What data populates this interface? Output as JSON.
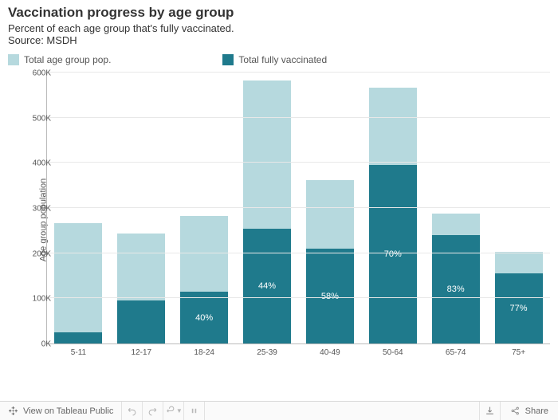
{
  "header": {
    "title": "Vaccination progress by age group",
    "subtitle": "Percent of each age group that's fully vaccinated.",
    "source": "Source: MSDH"
  },
  "legend": {
    "items": [
      {
        "label": "Total age group pop.",
        "color": "#b6d9de"
      },
      {
        "label": "Total fully vaccinated",
        "color": "#1f7a8c"
      }
    ]
  },
  "chart": {
    "type": "bar-stacked",
    "y_axis_label": "Age group population",
    "ylim": [
      0,
      600000
    ],
    "ytick_step": 100000,
    "y_tick_labels": [
      "0K",
      "100K",
      "200K",
      "300K",
      "400K",
      "500K",
      "600K"
    ],
    "background_color": "#ffffff",
    "grid_color": "#e8e8e8",
    "axis_color": "#bbbbbb",
    "label_color": "#555555",
    "label_fontsize": 10,
    "bar_width_ratio": 0.76,
    "series_colors": {
      "total_pop": "#b6d9de",
      "vaccinated": "#1f7a8c"
    },
    "value_label_color": "#ffffff",
    "categories": [
      {
        "label": "5-11",
        "total_pop": 268000,
        "vaccinated": 25000,
        "pct_label": ""
      },
      {
        "label": "12-17",
        "total_pop": 244000,
        "vaccinated": 95000,
        "pct_label": ""
      },
      {
        "label": "18-24",
        "total_pop": 284000,
        "vaccinated": 115000,
        "pct_label": "40%"
      },
      {
        "label": "25-39",
        "total_pop": 585000,
        "vaccinated": 255000,
        "pct_label": "44%"
      },
      {
        "label": "40-49",
        "total_pop": 363000,
        "vaccinated": 210000,
        "pct_label": "58%"
      },
      {
        "label": "50-64",
        "total_pop": 568000,
        "vaccinated": 396000,
        "pct_label": "70%"
      },
      {
        "label": "65-74",
        "total_pop": 288000,
        "vaccinated": 240000,
        "pct_label": "83%"
      },
      {
        "label": "75+",
        "total_pop": 203000,
        "vaccinated": 156000,
        "pct_label": "77%"
      }
    ]
  },
  "toolbar": {
    "view_label": "View on Tableau Public",
    "share_label": "Share"
  }
}
